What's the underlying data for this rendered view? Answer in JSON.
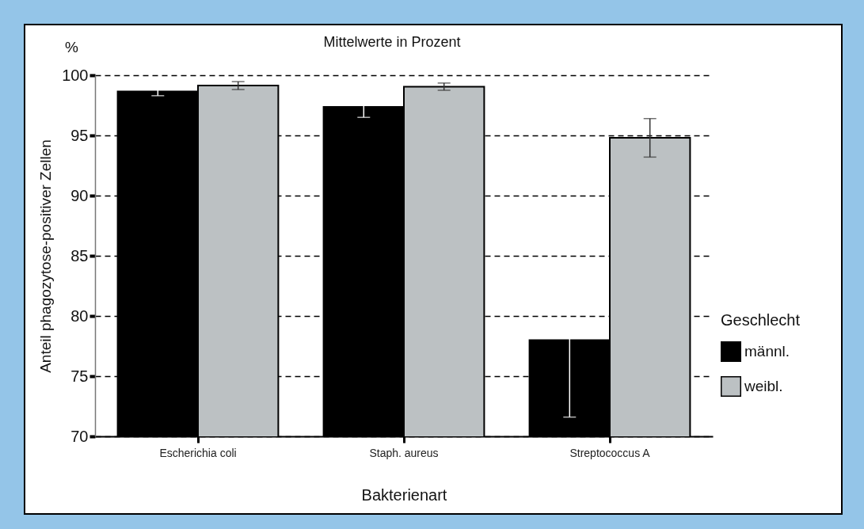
{
  "chart_data": {
    "type": "bar",
    "title": "Mittelwerte in Prozent",
    "xlabel": "Bakterienart",
    "ylabel": "Anteil phagozytose-positiver Zellen",
    "legend_title": "Geschlecht",
    "annotations": [
      "%"
    ],
    "categories": [
      "Escherichia coli",
      "Staph. aureus",
      "Streptococcus A"
    ],
    "series": [
      {
        "name": "männl.",
        "color": "#000000",
        "values": [
          98.65,
          97.37,
          78.0
        ],
        "errors": [
          0.35,
          0.87,
          6.4
        ]
      },
      {
        "name": "weibl.",
        "color": "#bcc1c3",
        "values": [
          99.14,
          99.05,
          94.8
        ],
        "errors": [
          0.33,
          0.3,
          1.6
        ]
      }
    ],
    "ylim": [
      70,
      100
    ],
    "yticks": [
      70,
      75,
      80,
      85,
      90,
      95,
      100
    ],
    "grid": "y",
    "legend": "right"
  }
}
